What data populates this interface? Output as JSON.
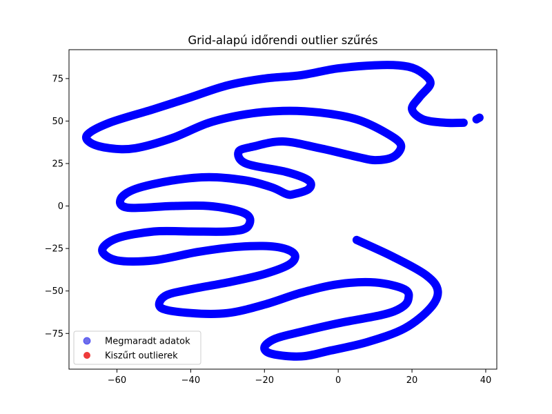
{
  "chart_data": {
    "type": "scatter",
    "title": "Grid-alapú időrendi outlier szűrés",
    "xlabel": "",
    "ylabel": "",
    "xlim": [
      -73,
      43
    ],
    "ylim": [
      -96,
      92
    ],
    "xticks": [
      -60,
      -40,
      -20,
      0,
      20,
      40
    ],
    "yticks": [
      -75,
      -50,
      -25,
      0,
      25,
      50,
      75
    ],
    "grid": false,
    "legend_position": "lower-left",
    "series": [
      {
        "name": "Megmaradt adatok",
        "color": "#0000ff",
        "legend_color": "#6f6fe9",
        "segments": [
          [
            [
              5,
              -20
            ],
            [
              15,
              -30
            ],
            [
              24,
              -41
            ],
            [
              27,
              -50
            ],
            [
              25,
              -60
            ],
            [
              18,
              -72
            ],
            [
              8,
              -80
            ],
            [
              -2,
              -85
            ],
            [
              -10,
              -88.5
            ],
            [
              -18,
              -87
            ],
            [
              -20,
              -83
            ],
            [
              -17,
              -78
            ],
            [
              -10,
              -74
            ],
            [
              0,
              -69
            ],
            [
              12,
              -64
            ],
            [
              17,
              -60
            ],
            [
              19,
              -55
            ],
            [
              18,
              -49
            ],
            [
              10,
              -45
            ],
            [
              0,
              -46
            ],
            [
              -10,
              -51
            ],
            [
              -20,
              -58
            ],
            [
              -30,
              -63
            ],
            [
              -40,
              -63
            ],
            [
              -48,
              -60
            ],
            [
              -47,
              -53
            ],
            [
              -40,
              -49
            ],
            [
              -30,
              -45
            ],
            [
              -20,
              -40
            ],
            [
              -13,
              -34
            ],
            [
              -12,
              -28
            ],
            [
              -17,
              -24
            ],
            [
              -27,
              -24
            ],
            [
              -38,
              -27
            ],
            [
              -50,
              -32
            ],
            [
              -60,
              -32
            ],
            [
              -64,
              -26
            ],
            [
              -60,
              -19
            ],
            [
              -50,
              -15
            ],
            [
              -40,
              -15
            ],
            [
              -30,
              -15
            ],
            [
              -25,
              -13
            ],
            [
              -24,
              -7
            ],
            [
              -27,
              -3
            ],
            [
              -35,
              0
            ],
            [
              -45,
              0
            ],
            [
              -57,
              -1
            ],
            [
              -59,
              4
            ],
            [
              -55,
              10
            ],
            [
              -45,
              15
            ],
            [
              -35,
              17
            ],
            [
              -25,
              15
            ],
            [
              -18,
              11
            ],
            [
              -14,
              7
            ],
            [
              -12,
              7
            ],
            [
              -8,
              10
            ],
            [
              -8,
              15
            ],
            [
              -14,
              20
            ],
            [
              -25,
              25
            ],
            [
              -27,
              32
            ],
            [
              -23,
              35
            ],
            [
              -15,
              38
            ],
            [
              -5,
              34
            ],
            [
              5,
              29
            ],
            [
              10,
              27
            ],
            [
              15,
              29
            ],
            [
              17,
              36
            ],
            [
              13,
              43
            ],
            [
              5,
              51
            ],
            [
              -5,
              55
            ],
            [
              -15,
              56
            ],
            [
              -25,
              54
            ],
            [
              -35,
              49
            ],
            [
              -45,
              40
            ],
            [
              -55,
              34
            ],
            [
              -62,
              34
            ],
            [
              -67,
              37
            ],
            [
              -68,
              42
            ],
            [
              -62,
              49
            ],
            [
              -50,
              57
            ],
            [
              -40,
              64
            ],
            [
              -30,
              71
            ],
            [
              -20,
              75
            ],
            [
              -10,
              77
            ],
            [
              0,
              81
            ],
            [
              12,
              83
            ],
            [
              19,
              82
            ],
            [
              23,
              78
            ],
            [
              25,
              72
            ],
            [
              22,
              64
            ],
            [
              20,
              57
            ],
            [
              23,
              51
            ],
            [
              29,
              49
            ],
            [
              34,
              49
            ]
          ],
          [
            [
              37.5,
              51
            ],
            [
              38.3,
              52
            ]
          ]
        ]
      },
      {
        "name": "Kiszűrt outlierek",
        "color": "#ee3b3b",
        "segments": []
      }
    ]
  }
}
